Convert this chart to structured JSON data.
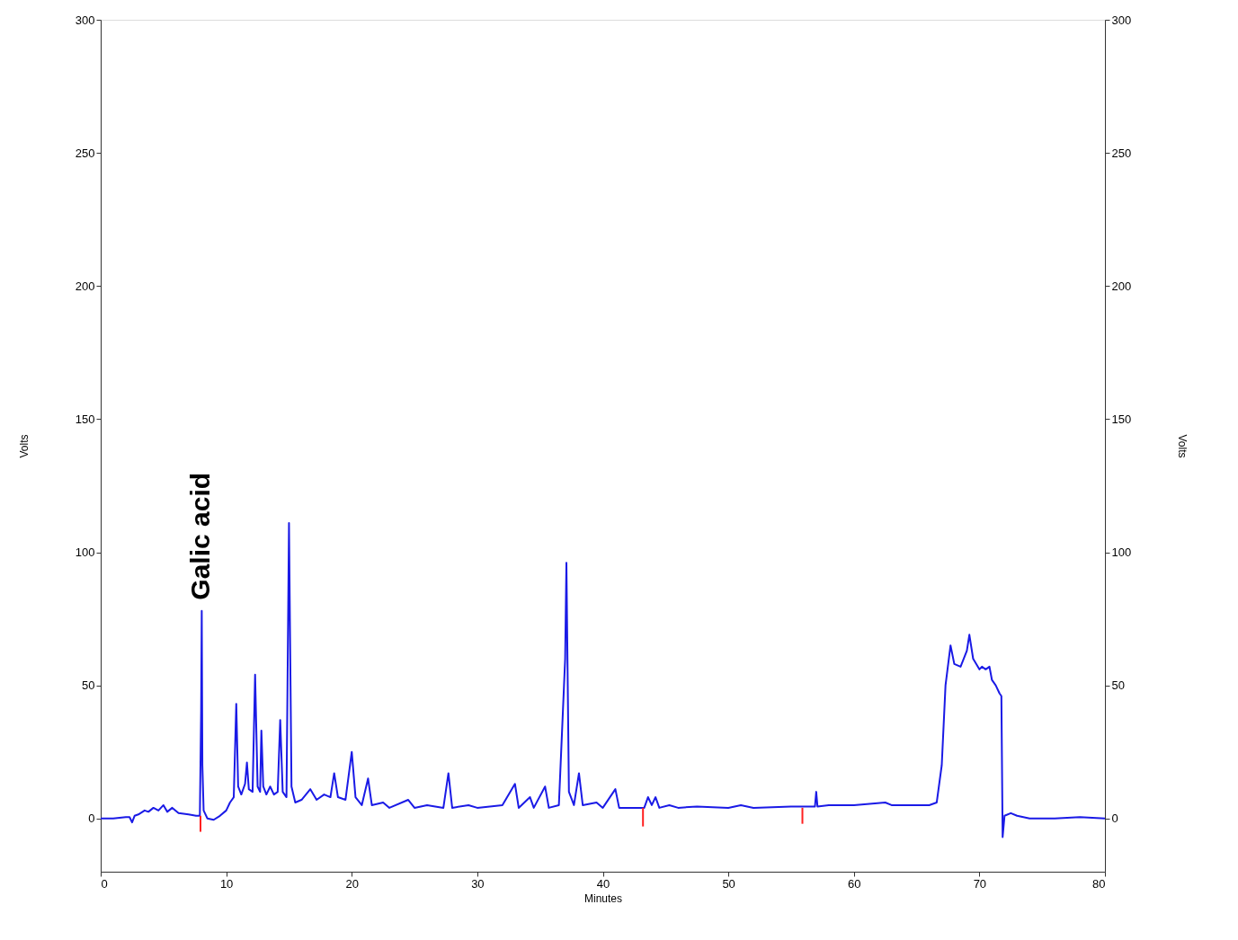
{
  "chart_data": {
    "type": "line",
    "xlabel": "Minutes",
    "ylabel": "Volts",
    "y2label": "Volts",
    "xlim": [
      0,
      80
    ],
    "xticks": [
      0,
      10,
      20,
      30,
      40,
      50,
      60,
      70,
      80
    ],
    "ylim": [
      -20,
      300
    ],
    "yticks": [
      0,
      50,
      100,
      150,
      200,
      250,
      300
    ],
    "y2lim": [
      -20,
      300
    ],
    "y2ticks": [
      0,
      50,
      100,
      150,
      200,
      250,
      300
    ],
    "grid": false,
    "marker": "none",
    "line_style": "solid",
    "annotations": [
      {
        "text": "Galic acid",
        "x": 8.05,
        "y": 78
      }
    ],
    "series": [
      {
        "color": "#1a1ae6",
        "x": [
          0,
          1,
          2,
          2.3,
          2.5,
          2.7,
          3,
          3.5,
          3.8,
          4.2,
          4.6,
          5,
          5.3,
          5.7,
          6.2,
          7,
          7.6,
          7.9,
          8.0,
          8.05,
          8.1,
          8.2,
          8.5,
          9,
          9.5,
          10,
          10.3,
          10.6,
          10.8,
          10.95,
          11.2,
          11.5,
          11.65,
          11.8,
          12.1,
          12.3,
          12.5,
          12.7,
          12.8,
          12.95,
          13.2,
          13.5,
          13.8,
          14.1,
          14.3,
          14.5,
          14.8,
          15.0,
          15.2,
          15.5,
          16,
          16.7,
          17.2,
          17.8,
          18.3,
          18.6,
          18.9,
          19.5,
          20.0,
          20.3,
          20.8,
          21.3,
          21.6,
          22.5,
          23,
          24.5,
          25,
          26,
          27.3,
          27.7,
          28,
          29.3,
          30,
          32,
          33,
          33.3,
          34.2,
          34.5,
          35.4,
          35.7,
          36.5,
          37.0,
          37.1,
          37.3,
          37.7,
          38.1,
          38.4,
          39.5,
          40,
          41,
          41.3,
          42,
          43.3,
          43.6,
          43.9,
          44.2,
          44.5,
          45.3,
          46,
          47.5,
          50,
          51,
          52,
          55,
          56.9,
          57.0,
          57.1,
          58,
          60,
          62.5,
          63,
          66,
          66.6,
          67,
          67.3,
          67.7,
          68,
          68.5,
          69,
          69.2,
          69.5,
          70,
          70.2,
          70.5,
          70.8,
          71,
          71.3,
          71.6,
          71.75,
          71.85,
          72,
          72.5,
          73,
          74,
          76,
          78,
          80
        ],
        "values": [
          0,
          0,
          0.5,
          0.5,
          -1.5,
          1,
          1.5,
          3,
          2.5,
          4,
          3,
          5,
          2.5,
          4,
          2,
          1.5,
          1,
          1,
          40,
          78,
          20,
          3,
          0,
          -0.5,
          1,
          3,
          6,
          8,
          43,
          12,
          9,
          13,
          21,
          11,
          10,
          54,
          12,
          10,
          33,
          12,
          9,
          12,
          9,
          10,
          37,
          10,
          8,
          111,
          12,
          6,
          7,
          11,
          7,
          9,
          8,
          17,
          8,
          7,
          25,
          8,
          5,
          15,
          5,
          6,
          4,
          7,
          4,
          5,
          4,
          17,
          4,
          5,
          4,
          5,
          13,
          4,
          8,
          4,
          12,
          4,
          5,
          60,
          96,
          10,
          5,
          17,
          5,
          6,
          4,
          11,
          4,
          4,
          4,
          8,
          5,
          8,
          4,
          5,
          4,
          4.5,
          4,
          5,
          4,
          4.5,
          4.5,
          10,
          4.5,
          5,
          5,
          6,
          5,
          5,
          6,
          20,
          50,
          65,
          58,
          57,
          63,
          69,
          60,
          56,
          57,
          56,
          57,
          52,
          50,
          47,
          46,
          -7,
          1,
          2,
          1,
          0,
          0,
          0.5,
          0
        ]
      },
      {
        "color": "#ff2020",
        "x": [
          7.95,
          7.95
        ],
        "values": [
          1,
          -5
        ]
      },
      {
        "color": "#ff2020",
        "x": [
          43.2,
          43.2
        ],
        "values": [
          4,
          -3
        ]
      },
      {
        "color": "#ff2020",
        "x": [
          55.9,
          55.9
        ],
        "values": [
          4,
          -2
        ]
      }
    ]
  }
}
